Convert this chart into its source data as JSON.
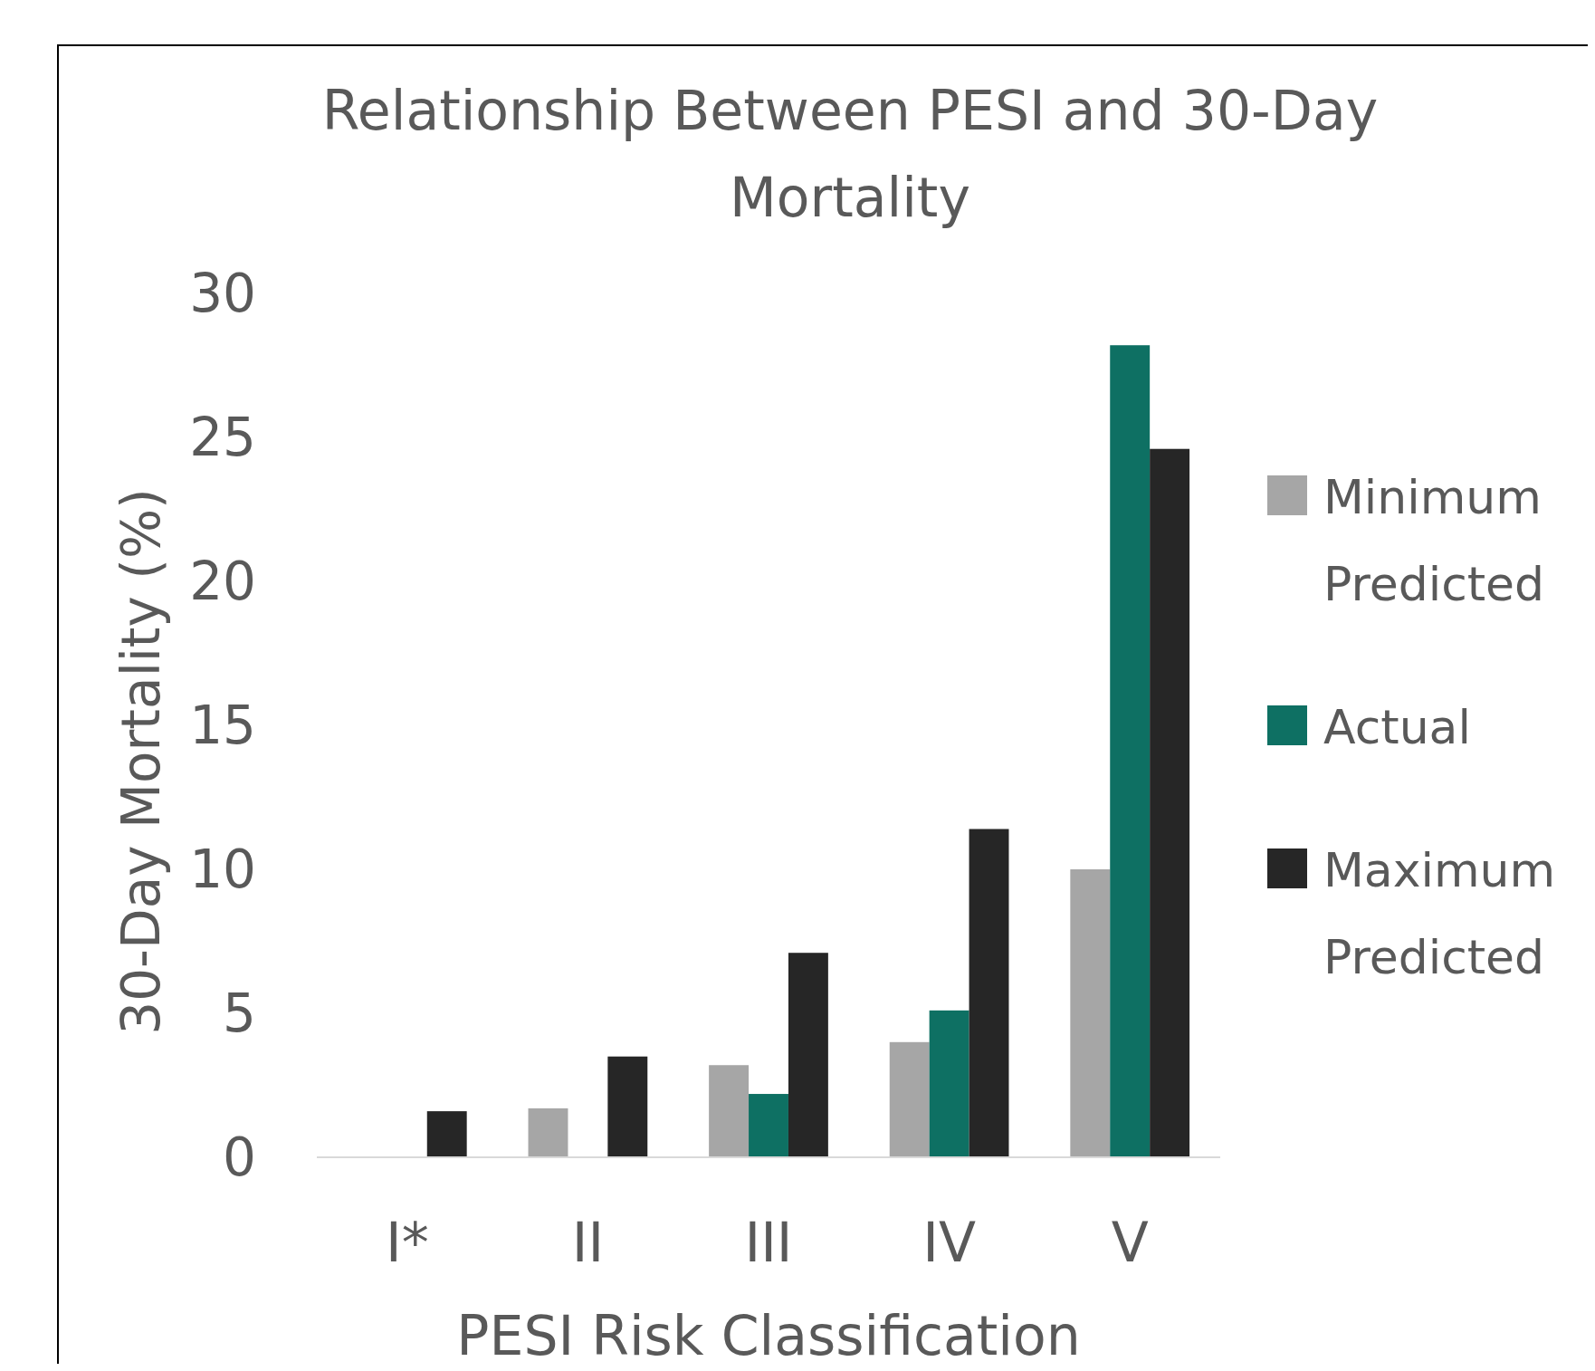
{
  "chart_data": {
    "type": "bar",
    "title": "Relationship Between PESI and 30-Day Mortality",
    "xlabel": "PESI Risk Classification",
    "ylabel": "30-Day Mortality (%)",
    "categories": [
      "I*",
      "II",
      "III",
      "IV",
      "V"
    ],
    "series": [
      {
        "name": "Minimum Predicted",
        "color": "#a6a6a6",
        "values": [
          0,
          1.7,
          3.2,
          4.0,
          10.0
        ]
      },
      {
        "name": "Actual",
        "color": "#0e7063",
        "values": [
          0,
          0,
          2.2,
          5.1,
          28.2
        ]
      },
      {
        "name": "Maximum Predicted",
        "color": "#262626",
        "values": [
          1.6,
          3.5,
          7.1,
          11.4,
          24.6
        ]
      }
    ],
    "ylim": [
      0,
      30
    ],
    "yticks": [
      0,
      5,
      10,
      15,
      20,
      25,
      30
    ],
    "grid": false,
    "legend": "right"
  }
}
